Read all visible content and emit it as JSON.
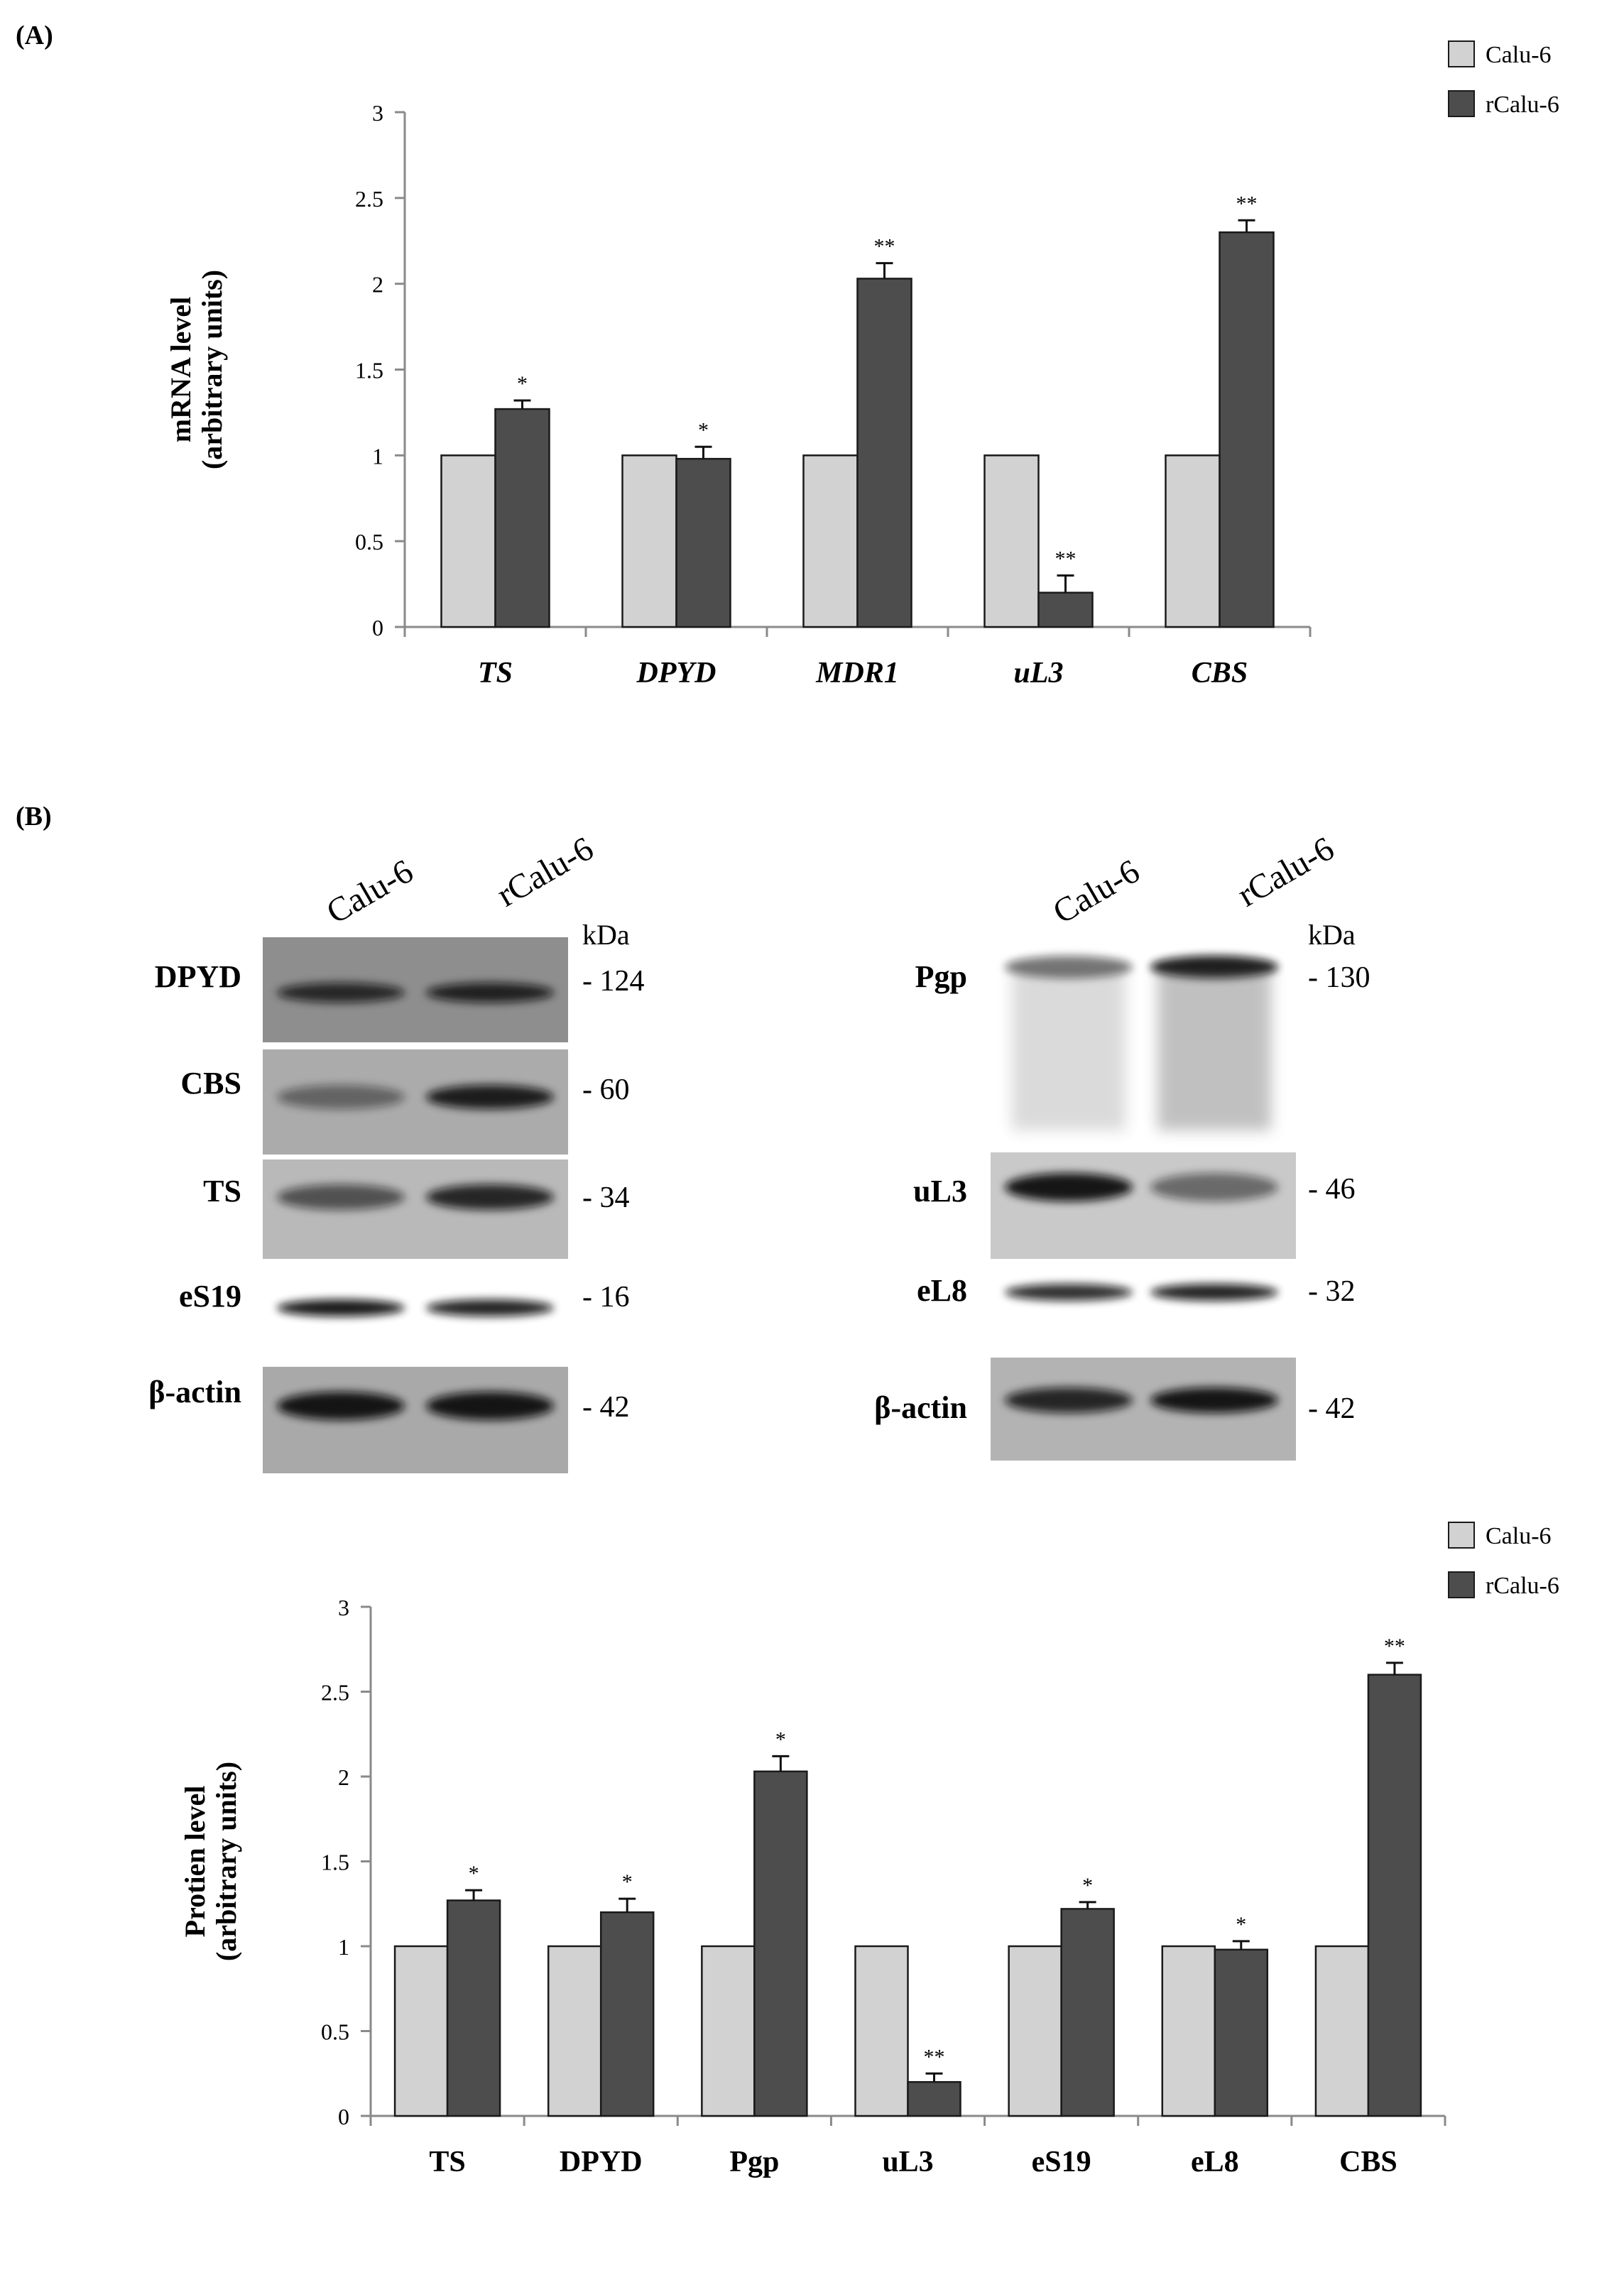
{
  "panels": {
    "a_label": "(A)",
    "b_label": "(B)"
  },
  "colors": {
    "calu6": "#d2d2d2",
    "rcalu6": "#4d4d4d",
    "bar_stroke": "#1a1a1a",
    "axis": "#8a8a8a"
  },
  "chart_data": [
    {
      "type": "bar",
      "id": "chartA",
      "categories": [
        "TS",
        "DPYD",
        "MDR1",
        "uL3",
        "CBS"
      ],
      "category_italic": true,
      "ylabel": [
        "mRNA level",
        "(arbitrary units)"
      ],
      "ylim": [
        0,
        3
      ],
      "yticks": [
        "0",
        "0.5",
        "1",
        "1.5",
        "2",
        "2.5",
        "3"
      ],
      "grid": false,
      "legend_position": "top-right",
      "series": [
        {
          "name": "Calu-6",
          "values": [
            1,
            1,
            1,
            1,
            1
          ],
          "errors": [
            0,
            0,
            0,
            0,
            0
          ],
          "signif": [
            "",
            "",
            "",
            "",
            ""
          ]
        },
        {
          "name": "rCalu-6",
          "values": [
            1.27,
            0.98,
            2.03,
            0.2,
            2.3
          ],
          "errors": [
            0.05,
            0.07,
            0.09,
            0.1,
            0.07
          ],
          "signif": [
            "*",
            "*",
            "**",
            "**",
            "**"
          ]
        }
      ]
    },
    {
      "type": "bar",
      "id": "chartB",
      "categories": [
        "TS",
        "DPYD",
        "Pgp",
        "uL3",
        "eS19",
        "eL8",
        "CBS"
      ],
      "category_italic": false,
      "ylabel": [
        "Protien  level",
        "(arbitrary units)"
      ],
      "ylim": [
        0,
        3
      ],
      "yticks": [
        "0",
        "0.5",
        "1",
        "1.5",
        "2",
        "2.5",
        "3"
      ],
      "grid": false,
      "legend_position": "top-right",
      "series": [
        {
          "name": "Calu-6",
          "values": [
            1,
            1,
            1,
            1,
            1,
            1,
            1
          ],
          "errors": [
            0,
            0,
            0,
            0,
            0,
            0,
            0
          ],
          "signif": [
            "",
            "",
            "",
            "",
            "",
            "",
            ""
          ]
        },
        {
          "name": "rCalu-6",
          "values": [
            1.27,
            1.2,
            2.03,
            0.2,
            1.22,
            0.98,
            2.6
          ],
          "errors": [
            0.06,
            0.08,
            0.09,
            0.05,
            0.04,
            0.05,
            0.07
          ],
          "signif": [
            "*",
            "*",
            "*",
            "**",
            "*",
            "*",
            "**"
          ]
        }
      ]
    }
  ],
  "blots": {
    "left": {
      "lanes": [
        "Calu-6",
        "rCalu-6"
      ],
      "unit": "kDa",
      "rows": [
        {
          "label": "DPYD",
          "kda": "- 124",
          "band1": 0.8,
          "band2": 0.85
        },
        {
          "label": "CBS",
          "kda": "- 60",
          "band1": 0.45,
          "band2": 0.9
        },
        {
          "label": "TS",
          "kda": "- 34",
          "band1": 0.6,
          "band2": 0.85
        },
        {
          "label": "eS19",
          "kda": "- 16",
          "band1": 0.95,
          "band2": 0.9
        },
        {
          "label": "β-actin",
          "kda": "- 42",
          "band1": 0.95,
          "band2": 0.95
        }
      ]
    },
    "right": {
      "lanes": [
        "Calu-6",
        "rCalu-6"
      ],
      "unit": "kDa",
      "rows": [
        {
          "label": "Pgp",
          "kda": "- 130",
          "band1": 0.55,
          "band2": 0.95
        },
        {
          "label": "uL3",
          "kda": "- 46",
          "band1": 0.95,
          "band2": 0.5
        },
        {
          "label": "eL8",
          "kda": "- 32",
          "band1": 0.85,
          "band2": 0.9
        },
        {
          "label": "β-actin",
          "kda": "- 42",
          "band1": 0.85,
          "band2": 0.95
        }
      ]
    }
  }
}
